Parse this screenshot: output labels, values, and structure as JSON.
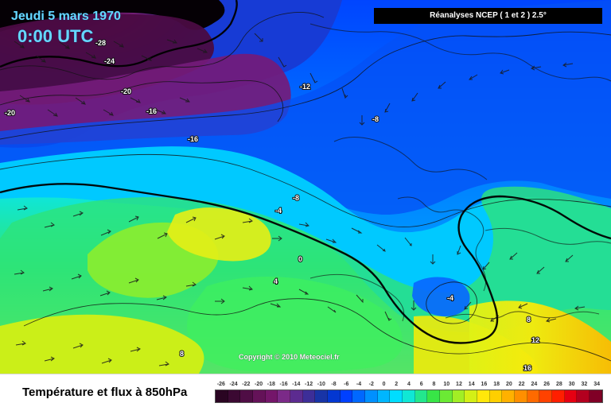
{
  "header": {
    "date": "Jeudi 5 mars 1970",
    "time": "0:00 UTC",
    "source": "Réanalyses NCEP ( 1 et 2 ) 2.5°"
  },
  "map": {
    "title": "Température et flux à 850hPa",
    "copyright": "Copyright © 2010 Meteociel.fr",
    "labels": [
      {
        "text": "-28"
      },
      {
        "text": "-24"
      },
      {
        "text": "-20"
      },
      {
        "text": "-16"
      },
      {
        "text": "-20"
      },
      {
        "text": "-16"
      },
      {
        "text": "-12"
      },
      {
        "text": "-8"
      },
      {
        "text": "-8"
      },
      {
        "text": "-4"
      },
      {
        "text": "0"
      },
      {
        "text": "4"
      },
      {
        "text": "8"
      },
      {
        "text": "-4"
      },
      {
        "text": "8"
      },
      {
        "text": "12"
      },
      {
        "text": "16"
      }
    ],
    "legend": [
      {
        "label": "-26",
        "color": "#2a0522"
      },
      {
        "label": "-24",
        "color": "#3b0932"
      },
      {
        "label": "-22",
        "color": "#4f0d45"
      },
      {
        "label": "-20",
        "color": "#641258"
      },
      {
        "label": "-18",
        "color": "#74166a"
      },
      {
        "label": "-16",
        "color": "#7b2a88"
      },
      {
        "label": "-14",
        "color": "#5c2b90"
      },
      {
        "label": "-12",
        "color": "#3d2e98"
      },
      {
        "label": "-10",
        "color": "#1834a6"
      },
      {
        "label": "-8",
        "color": "#0337d1"
      },
      {
        "label": "-6",
        "color": "#0040ff"
      },
      {
        "label": "-4",
        "color": "#0068ff"
      },
      {
        "label": "-2",
        "color": "#0090ff"
      },
      {
        "label": "0",
        "color": "#00b6ff"
      },
      {
        "label": "2",
        "color": "#00ddff"
      },
      {
        "label": "4",
        "color": "#10e7d5"
      },
      {
        "label": "6",
        "color": "#23e78d"
      },
      {
        "label": "8",
        "color": "#38e547"
      },
      {
        "label": "10",
        "color": "#6bea34"
      },
      {
        "label": "12",
        "color": "#a2ee25"
      },
      {
        "label": "14",
        "color": "#d4ef16"
      },
      {
        "label": "16",
        "color": "#ffe70a"
      },
      {
        "label": "18",
        "color": "#ffcf00"
      },
      {
        "label": "20",
        "color": "#ffb100"
      },
      {
        "label": "22",
        "color": "#ff8f00"
      },
      {
        "label": "24",
        "color": "#ff6a00"
      },
      {
        "label": "26",
        "color": "#ff4200"
      },
      {
        "label": "28",
        "color": "#ff1f00"
      },
      {
        "label": "30",
        "color": "#e60012"
      },
      {
        "label": "32",
        "color": "#b3001f"
      },
      {
        "label": "34",
        "color": "#800026"
      }
    ]
  }
}
